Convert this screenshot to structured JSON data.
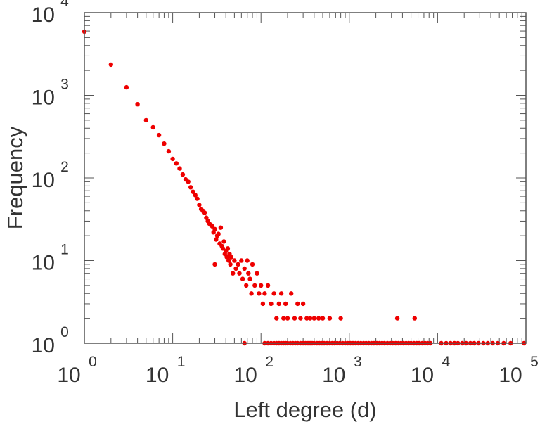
{
  "chart_data": {
    "type": "scatter",
    "xlabel": "Left degree (d)",
    "ylabel": "Frequency",
    "x_scale": "log",
    "y_scale": "log",
    "xlim": [
      1,
      100000
    ],
    "ylim": [
      1,
      10000
    ],
    "x_ticks": [
      {
        "base": "10",
        "exp": "0"
      },
      {
        "base": "10",
        "exp": "1"
      },
      {
        "base": "10",
        "exp": "2"
      },
      {
        "base": "10",
        "exp": "3"
      },
      {
        "base": "10",
        "exp": "4"
      },
      {
        "base": "10",
        "exp": "5"
      }
    ],
    "y_ticks": [
      {
        "base": "10",
        "exp": "0"
      },
      {
        "base": "10",
        "exp": "1"
      },
      {
        "base": "10",
        "exp": "2"
      },
      {
        "base": "10",
        "exp": "3"
      },
      {
        "base": "10",
        "exp": "4"
      }
    ],
    "grid": false,
    "marker_color": "#ee0000",
    "points": [
      [
        1,
        5900
      ],
      [
        2,
        2350
      ],
      [
        3,
        1250
      ],
      [
        4,
        780
      ],
      [
        5,
        500
      ],
      [
        6,
        410
      ],
      [
        7,
        330
      ],
      [
        8,
        260
      ],
      [
        9,
        210
      ],
      [
        10,
        170
      ],
      [
        11,
        150
      ],
      [
        12,
        130
      ],
      [
        13,
        110
      ],
      [
        14,
        96
      ],
      [
        15,
        90
      ],
      [
        16,
        77
      ],
      [
        17,
        68
      ],
      [
        18,
        62
      ],
      [
        19,
        56
      ],
      [
        20,
        47
      ],
      [
        21,
        42
      ],
      [
        22,
        40
      ],
      [
        23,
        38
      ],
      [
        24,
        33
      ],
      [
        25,
        30
      ],
      [
        26,
        28
      ],
      [
        27,
        27
      ],
      [
        28,
        26
      ],
      [
        29,
        22
      ],
      [
        30,
        24
      ],
      [
        31,
        18
      ],
      [
        32,
        20
      ],
      [
        33,
        21
      ],
      [
        34,
        16
      ],
      [
        35,
        25
      ],
      [
        36,
        15
      ],
      [
        37,
        14
      ],
      [
        38,
        17
      ],
      [
        39,
        12
      ],
      [
        40,
        13
      ],
      [
        41,
        11
      ],
      [
        42,
        14
      ],
      [
        43,
        10
      ],
      [
        44,
        12
      ],
      [
        45,
        9
      ],
      [
        46,
        11
      ],
      [
        48,
        7
      ],
      [
        50,
        10
      ],
      [
        52,
        8
      ],
      [
        55,
        9
      ],
      [
        57,
        7
      ],
      [
        60,
        10
      ],
      [
        62,
        6
      ],
      [
        65,
        8
      ],
      [
        68,
        5
      ],
      [
        70,
        10
      ],
      [
        72,
        7
      ],
      [
        75,
        6
      ],
      [
        78,
        4
      ],
      [
        80,
        9
      ],
      [
        85,
        5
      ],
      [
        90,
        7
      ],
      [
        95,
        4
      ],
      [
        100,
        5
      ],
      [
        105,
        3
      ],
      [
        110,
        4
      ],
      [
        120,
        5
      ],
      [
        130,
        3
      ],
      [
        140,
        4
      ],
      [
        150,
        2
      ],
      [
        160,
        3
      ],
      [
        170,
        4
      ],
      [
        180,
        2
      ],
      [
        190,
        3
      ],
      [
        200,
        2
      ],
      [
        220,
        4
      ],
      [
        240,
        2
      ],
      [
        260,
        3
      ],
      [
        280,
        2
      ],
      [
        300,
        3
      ],
      [
        330,
        2
      ],
      [
        360,
        2
      ],
      [
        400,
        2
      ],
      [
        450,
        2
      ],
      [
        500,
        2
      ],
      [
        600,
        2
      ],
      [
        800,
        2
      ],
      [
        3500,
        2
      ],
      [
        5500,
        2
      ],
      [
        30,
        9
      ],
      [
        65,
        1
      ],
      [
        110,
        1
      ],
      [
        120,
        1
      ],
      [
        130,
        1
      ],
      [
        140,
        1
      ],
      [
        150,
        1
      ],
      [
        160,
        1
      ],
      [
        170,
        1
      ],
      [
        180,
        1
      ],
      [
        190,
        1
      ],
      [
        200,
        1
      ],
      [
        215,
        1
      ],
      [
        230,
        1
      ],
      [
        245,
        1
      ],
      [
        260,
        1
      ],
      [
        280,
        1
      ],
      [
        300,
        1
      ],
      [
        320,
        1
      ],
      [
        340,
        1
      ],
      [
        360,
        1
      ],
      [
        380,
        1
      ],
      [
        400,
        1
      ],
      [
        430,
        1
      ],
      [
        460,
        1
      ],
      [
        490,
        1
      ],
      [
        520,
        1
      ],
      [
        560,
        1
      ],
      [
        600,
        1
      ],
      [
        640,
        1
      ],
      [
        680,
        1
      ],
      [
        730,
        1
      ],
      [
        780,
        1
      ],
      [
        840,
        1
      ],
      [
        900,
        1
      ],
      [
        960,
        1
      ],
      [
        1030,
        1
      ],
      [
        1100,
        1
      ],
      [
        1180,
        1
      ],
      [
        1260,
        1
      ],
      [
        1350,
        1
      ],
      [
        1450,
        1
      ],
      [
        1550,
        1
      ],
      [
        1660,
        1
      ],
      [
        1780,
        1
      ],
      [
        1900,
        1
      ],
      [
        2050,
        1
      ],
      [
        2200,
        1
      ],
      [
        2350,
        1
      ],
      [
        2500,
        1
      ],
      [
        2700,
        1
      ],
      [
        2900,
        1
      ],
      [
        3100,
        1
      ],
      [
        3350,
        1
      ],
      [
        3600,
        1
      ],
      [
        3850,
        1
      ],
      [
        4100,
        1
      ],
      [
        4400,
        1
      ],
      [
        4700,
        1
      ],
      [
        5000,
        1
      ],
      [
        5400,
        1
      ],
      [
        5800,
        1
      ],
      [
        6200,
        1
      ],
      [
        6700,
        1
      ],
      [
        7200,
        1
      ],
      [
        7700,
        1
      ],
      [
        8300,
        1
      ],
      [
        11000,
        1
      ],
      [
        12500,
        1
      ],
      [
        14000,
        1
      ],
      [
        15500,
        1
      ],
      [
        17000,
        1
      ],
      [
        19000,
        1
      ],
      [
        21000,
        1
      ],
      [
        23500,
        1
      ],
      [
        26000,
        1
      ],
      [
        29000,
        1
      ],
      [
        33000,
        1
      ],
      [
        37000,
        1
      ],
      [
        42000,
        1
      ],
      [
        48000,
        1
      ],
      [
        56000,
        1
      ],
      [
        67000,
        1
      ],
      [
        95000,
        1
      ]
    ]
  }
}
